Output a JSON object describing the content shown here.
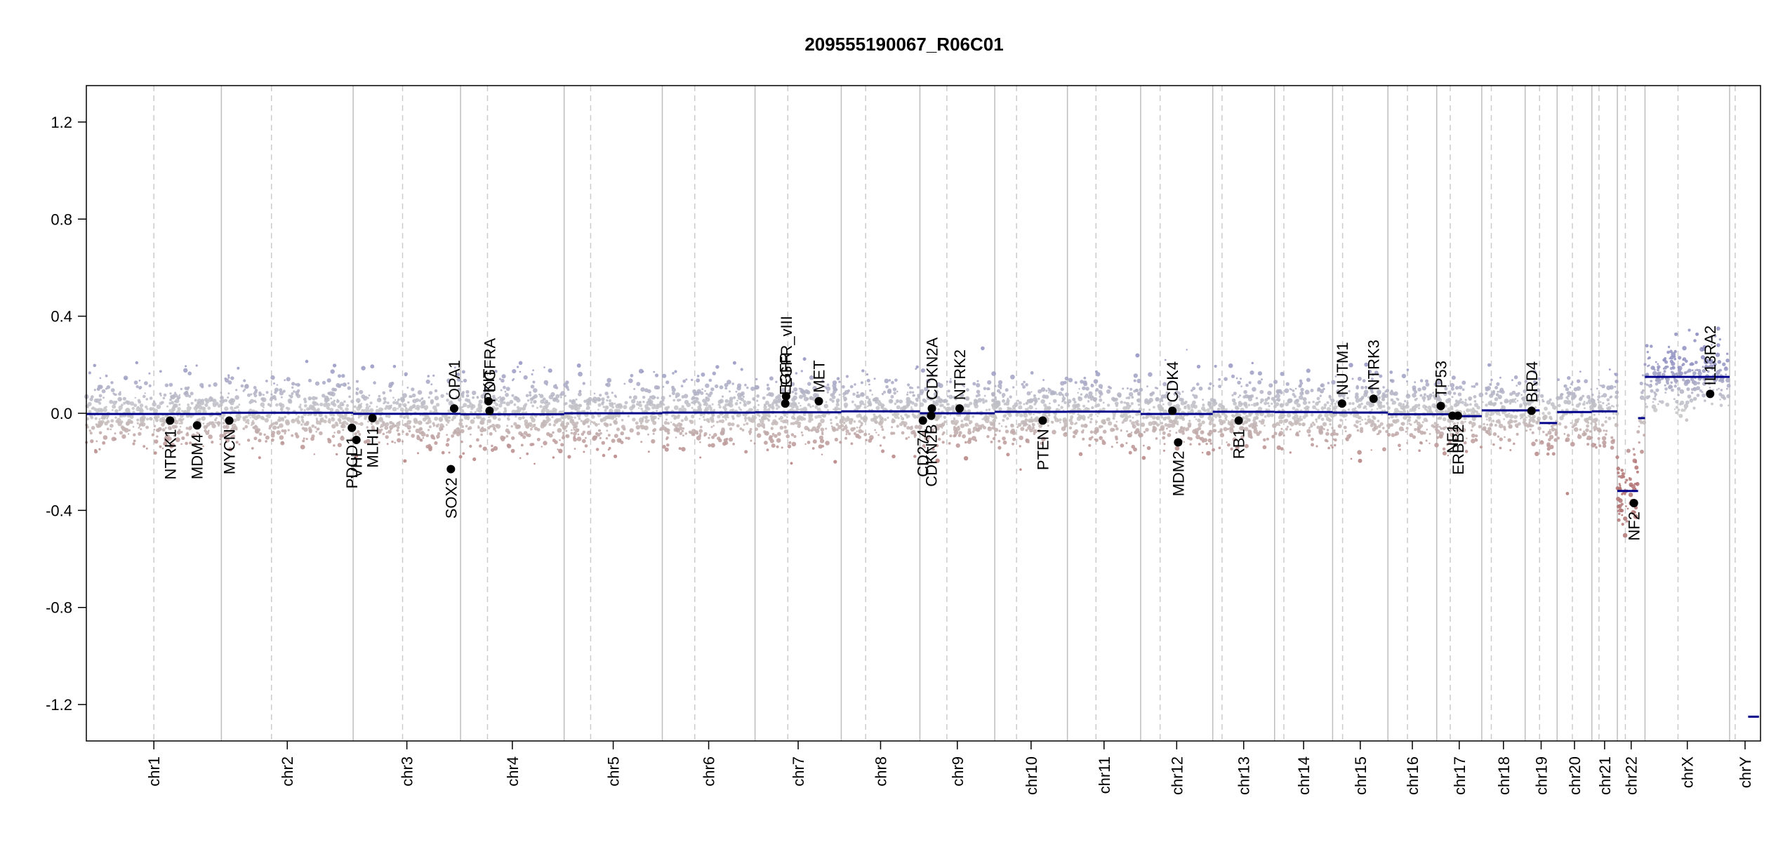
{
  "chart_data": {
    "type": "scatter",
    "title": "209555190067_R06C01",
    "xlabel": "",
    "ylabel": "",
    "ylim": [
      -1.35,
      1.35
    ],
    "yticks": [
      1.2,
      0.8,
      0.4,
      0.0,
      -0.4,
      -0.8,
      -1.2
    ],
    "ytick_labels": [
      "1.2",
      "0.8",
      "0.4",
      "0.0",
      "-0.4",
      "-0.8",
      "-1.2"
    ],
    "grid": false,
    "colors": {
      "gain": "#8f8fc2",
      "loss": "#b37474",
      "neutral": "#c8c8c8",
      "segment": "#00008b",
      "gene_point": "#000000",
      "boundary": "#bdbdbd",
      "centromere": "#cccccc"
    },
    "chromosomes": [
      {
        "name": "chr1",
        "length": 249,
        "centromere": 0.5,
        "segments": [
          {
            "from": 0,
            "to": 1,
            "value": -0.003
          }
        ]
      },
      {
        "name": "chr2",
        "length": 243,
        "centromere": 0.38,
        "segments": [
          {
            "from": 0,
            "to": 1,
            "value": 0.002
          }
        ]
      },
      {
        "name": "chr3",
        "length": 198,
        "centromere": 0.46,
        "segments": [
          {
            "from": 0,
            "to": 1,
            "value": -0.002
          }
        ]
      },
      {
        "name": "chr4",
        "length": 191,
        "centromere": 0.26,
        "segments": [
          {
            "from": 0,
            "to": 1,
            "value": -0.004
          }
        ]
      },
      {
        "name": "chr5",
        "length": 181,
        "centromere": 0.27,
        "segments": [
          {
            "from": 0,
            "to": 1,
            "value": 0.0
          }
        ]
      },
      {
        "name": "chr6",
        "length": 171,
        "centromere": 0.35,
        "segments": [
          {
            "from": 0,
            "to": 1,
            "value": 0.003
          }
        ]
      },
      {
        "name": "chr7",
        "length": 159,
        "centromere": 0.38,
        "segments": [
          {
            "from": 0,
            "to": 1,
            "value": 0.004
          }
        ]
      },
      {
        "name": "chr8",
        "length": 145,
        "centromere": 0.31,
        "segments": [
          {
            "from": 0,
            "to": 1,
            "value": 0.008
          }
        ]
      },
      {
        "name": "chr9",
        "length": 138,
        "centromere": 0.36,
        "segments": [
          {
            "from": 0,
            "to": 1,
            "value": 0.0
          }
        ]
      },
      {
        "name": "chr10",
        "length": 134,
        "centromere": 0.3,
        "segments": [
          {
            "from": 0,
            "to": 1,
            "value": 0.006
          }
        ]
      },
      {
        "name": "chr11",
        "length": 135,
        "centromere": 0.39,
        "segments": [
          {
            "from": 0,
            "to": 1,
            "value": 0.007
          }
        ]
      },
      {
        "name": "chr12",
        "length": 133,
        "centromere": 0.27,
        "segments": [
          {
            "from": 0,
            "to": 1,
            "value": -0.003
          }
        ]
      },
      {
        "name": "chr13",
        "length": 114,
        "centromere": 0.15,
        "segments": [
          {
            "from": 0,
            "to": 1,
            "value": 0.006
          }
        ]
      },
      {
        "name": "chr14",
        "length": 107,
        "centromere": 0.16,
        "segments": [
          {
            "from": 0,
            "to": 1,
            "value": 0.005
          }
        ]
      },
      {
        "name": "chr15",
        "length": 102,
        "centromere": 0.18,
        "segments": [
          {
            "from": 0,
            "to": 1,
            "value": 0.003
          }
        ]
      },
      {
        "name": "chr16",
        "length": 90,
        "centromere": 0.4,
        "segments": [
          {
            "from": 0,
            "to": 1,
            "value": -0.004
          }
        ]
      },
      {
        "name": "chr17",
        "length": 83,
        "centromere": 0.3,
        "segments": [
          {
            "from": 0,
            "to": 0.5,
            "value": -0.004
          },
          {
            "from": 0.5,
            "to": 1,
            "value": -0.012
          }
        ]
      },
      {
        "name": "chr18",
        "length": 80,
        "centromere": 0.22,
        "segments": [
          {
            "from": 0,
            "to": 1,
            "value": 0.012
          }
        ]
      },
      {
        "name": "chr19",
        "length": 59,
        "centromere": 0.45,
        "segments": [
          {
            "from": 0,
            "to": 0.45,
            "value": 0.012
          },
          {
            "from": 0.45,
            "to": 1,
            "value": -0.04
          }
        ]
      },
      {
        "name": "chr20",
        "length": 64,
        "centromere": 0.44,
        "segments": [
          {
            "from": 0,
            "to": 1,
            "value": 0.005
          }
        ]
      },
      {
        "name": "chr21",
        "length": 47,
        "centromere": 0.28,
        "segments": [
          {
            "from": 0,
            "to": 1,
            "value": 0.008
          }
        ]
      },
      {
        "name": "chr22",
        "length": 51,
        "centromere": 0.29,
        "segments": [
          {
            "from": 0,
            "to": 0.75,
            "value": -0.32
          },
          {
            "from": 0.75,
            "to": 1,
            "value": -0.02
          }
        ]
      },
      {
        "name": "chrX",
        "length": 156,
        "centromere": 0.39,
        "segments": [
          {
            "from": 0,
            "to": 1,
            "value": 0.15
          }
        ]
      },
      {
        "name": "chrY",
        "length": 57,
        "centromere": 0.18,
        "segments": [
          {
            "from": 0.6,
            "to": 0.95,
            "value": -1.25
          }
        ]
      }
    ],
    "genes": [
      {
        "name": "NTRK1",
        "chr": "chr1",
        "pos": 0.62,
        "value": -0.03,
        "label_side": "below"
      },
      {
        "name": "MDM4",
        "chr": "chr1",
        "pos": 0.82,
        "value": -0.05,
        "label_side": "below"
      },
      {
        "name": "MYCN",
        "chr": "chr2",
        "pos": 0.06,
        "value": -0.03,
        "label_side": "below"
      },
      {
        "name": "PDCD1",
        "chr": "chr2",
        "pos": 0.99,
        "value": -0.06,
        "label_side": "below"
      },
      {
        "name": "VHL",
        "chr": "chr3",
        "pos": 0.03,
        "value": -0.11,
        "label_side": "below"
      },
      {
        "name": "MLH1",
        "chr": "chr3",
        "pos": 0.18,
        "value": -0.02,
        "label_side": "below"
      },
      {
        "name": "SOX2",
        "chr": "chr3",
        "pos": 0.91,
        "value": -0.23,
        "label_side": "below"
      },
      {
        "name": "OPA1",
        "chr": "chr3",
        "pos": 0.94,
        "value": 0.02,
        "label_side": "above"
      },
      {
        "name": "KIT",
        "chr": "chr4",
        "pos": 0.27,
        "value": 0.05,
        "label_side": "above"
      },
      {
        "name": "PDGFRA",
        "chr": "chr4",
        "pos": 0.28,
        "value": 0.01,
        "label_side": "above"
      },
      {
        "name": "EGFR",
        "chr": "chr7",
        "pos": 0.35,
        "value": 0.04,
        "label_side": "above"
      },
      {
        "name": "EGFR_vIII",
        "chr": "chr7",
        "pos": 0.36,
        "value": 0.07,
        "label_side": "above"
      },
      {
        "name": "MET",
        "chr": "chr7",
        "pos": 0.74,
        "value": 0.05,
        "label_side": "above"
      },
      {
        "name": "CD274",
        "chr": "chr9",
        "pos": 0.04,
        "value": -0.03,
        "label_side": "below"
      },
      {
        "name": "CDKN2B",
        "chr": "chr9",
        "pos": 0.15,
        "value": -0.01,
        "label_side": "below"
      },
      {
        "name": "CDKN2A",
        "chr": "chr9",
        "pos": 0.16,
        "value": 0.02,
        "label_side": "above"
      },
      {
        "name": "NTRK2",
        "chr": "chr9",
        "pos": 0.53,
        "value": 0.02,
        "label_side": "above"
      },
      {
        "name": "PTEN",
        "chr": "chr10",
        "pos": 0.66,
        "value": -0.03,
        "label_side": "below"
      },
      {
        "name": "CDK4",
        "chr": "chr12",
        "pos": 0.44,
        "value": 0.01,
        "label_side": "above"
      },
      {
        "name": "MDM2",
        "chr": "chr12",
        "pos": 0.52,
        "value": -0.12,
        "label_side": "below"
      },
      {
        "name": "RB1",
        "chr": "chr13",
        "pos": 0.42,
        "value": -0.03,
        "label_side": "below"
      },
      {
        "name": "NUTM1",
        "chr": "chr15",
        "pos": 0.17,
        "value": 0.04,
        "label_side": "above"
      },
      {
        "name": "NTRK3",
        "chr": "chr15",
        "pos": 0.74,
        "value": 0.06,
        "label_side": "above"
      },
      {
        "name": "TP53",
        "chr": "chr17",
        "pos": 0.09,
        "value": 0.03,
        "label_side": "above"
      },
      {
        "name": "NF1",
        "chr": "chr17",
        "pos": 0.35,
        "value": -0.01,
        "label_side": "below"
      },
      {
        "name": "ERBB2",
        "chr": "chr17",
        "pos": 0.47,
        "value": -0.01,
        "label_side": "below"
      },
      {
        "name": "BRD4",
        "chr": "chr19",
        "pos": 0.2,
        "value": 0.01,
        "label_side": "above"
      },
      {
        "name": "NF2",
        "chr": "chr22",
        "pos": 0.6,
        "value": -0.37,
        "label_side": "below"
      },
      {
        "name": "IL13RA2",
        "chr": "chrX",
        "pos": 0.77,
        "value": 0.08,
        "label_side": "above"
      }
    ]
  }
}
